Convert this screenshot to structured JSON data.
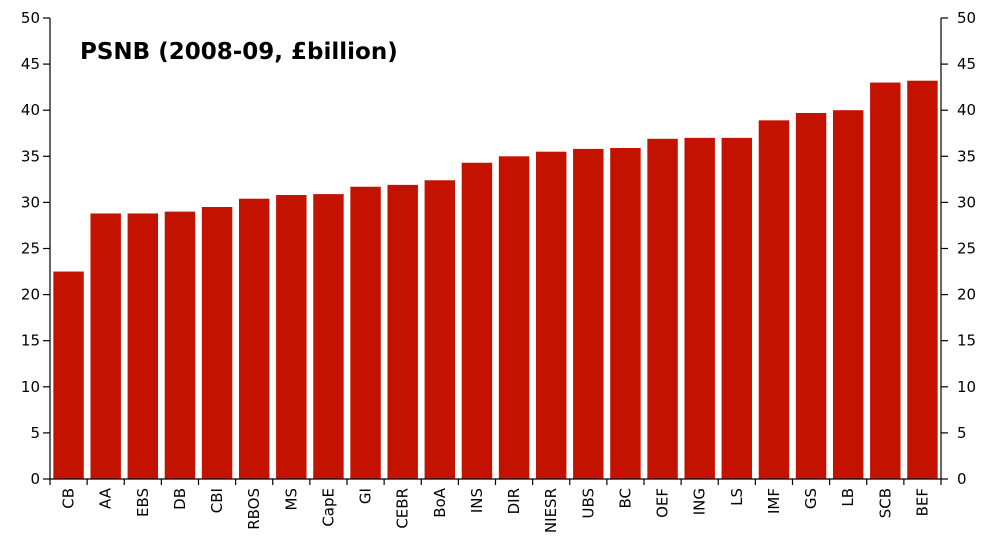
{
  "chart_data": {
    "type": "bar",
    "title": "PSNB (2008-09, £billion)",
    "xlabel": "",
    "ylabel": "",
    "ylim": [
      0,
      50
    ],
    "yticks": [
      0,
      5,
      10,
      15,
      20,
      25,
      30,
      35,
      40,
      45,
      50
    ],
    "grid": false,
    "legend": "none",
    "bar_color": "#c41200",
    "categories": [
      "CB",
      "AA",
      "EBS",
      "DB",
      "CBI",
      "RBOS",
      "MS",
      "CapE",
      "GI",
      "CEBR",
      "BoA",
      "INS",
      "DIR",
      "NIESR",
      "UBS",
      "BC",
      "OEF",
      "ING",
      "LS",
      "IMF",
      "GS",
      "LB",
      "SCB",
      "BEF"
    ],
    "values": [
      22.5,
      28.8,
      28.8,
      29.0,
      29.5,
      30.4,
      30.8,
      30.9,
      31.7,
      31.9,
      32.4,
      34.3,
      35.0,
      35.5,
      35.8,
      35.9,
      36.9,
      37.0,
      37.0,
      38.9,
      39.7,
      40.0,
      43.0,
      43.2
    ]
  }
}
